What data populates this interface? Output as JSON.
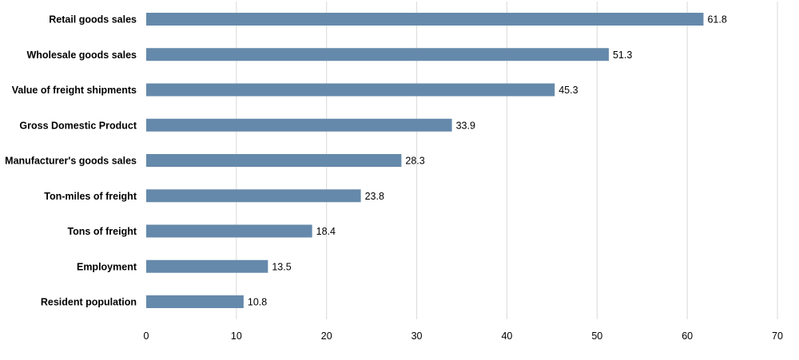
{
  "chart_data": {
    "type": "bar",
    "orientation": "horizontal",
    "title": "",
    "xlabel": "",
    "ylabel": "",
    "categories": [
      "Retail goods sales",
      "Wholesale goods sales",
      "Value of freight shipments",
      "Gross Domestic Product",
      "Manufacturer's goods sales",
      "Ton-miles of freight",
      "Tons of freight",
      "Employment",
      "Resident population"
    ],
    "values": [
      61.8,
      51.3,
      45.3,
      33.9,
      28.3,
      23.8,
      18.4,
      13.5,
      10.8
    ],
    "value_labels": [
      "61.8",
      "51.3",
      "45.3",
      "33.9",
      "28.3",
      "23.8",
      "18.4",
      "13.5",
      "10.8"
    ],
    "xlim": [
      0,
      70
    ],
    "x_ticks": [
      0,
      10,
      20,
      30,
      40,
      50,
      60,
      70
    ],
    "x_tick_labels": [
      "0",
      "10",
      "20",
      "30",
      "40",
      "50",
      "60",
      "70"
    ],
    "grid": "vertical",
    "legend": "none",
    "bar_color": "#6589ab",
    "grid_color": "#d9d9d9"
  }
}
